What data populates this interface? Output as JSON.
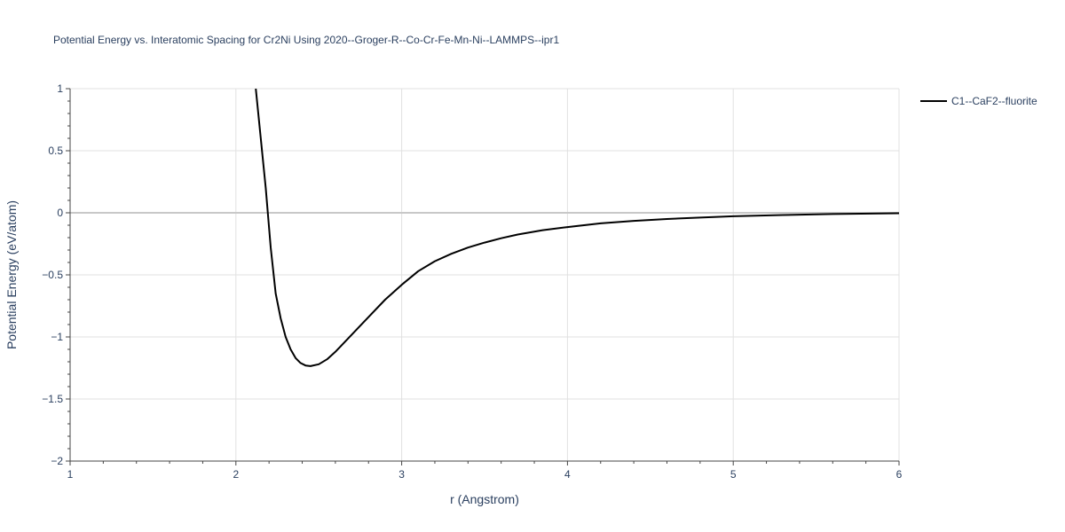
{
  "chart_data": {
    "type": "line",
    "title": "Potential Energy vs. Interatomic Spacing for Cr2Ni Using 2020--Groger-R--Co-Cr-Fe-Mn-Ni--LAMMPS--ipr1",
    "xlabel": "r (Angstrom)",
    "ylabel": "Potential Energy (eV/atom)",
    "xlim": [
      1,
      6
    ],
    "ylim": [
      -2,
      1
    ],
    "xticks": [
      1,
      2,
      3,
      4,
      5,
      6
    ],
    "xtick_labels": [
      "1",
      "2",
      "3",
      "4",
      "5",
      "6"
    ],
    "yticks": [
      -2,
      -1.5,
      -1,
      -0.5,
      0,
      0.5,
      1
    ],
    "ytick_labels": [
      "−2",
      "−1.5",
      "−1",
      "−0.5",
      "0",
      "0.5",
      "1"
    ],
    "grid": true,
    "legend_position": "top-right",
    "series": [
      {
        "name": "C1--CaF2--fluorite",
        "color": "#000000",
        "x": [
          2.12,
          2.15,
          2.18,
          2.21,
          2.24,
          2.27,
          2.3,
          2.33,
          2.36,
          2.39,
          2.42,
          2.45,
          2.5,
          2.55,
          2.6,
          2.7,
          2.8,
          2.9,
          3.0,
          3.1,
          3.2,
          3.3,
          3.4,
          3.5,
          3.6,
          3.7,
          3.85,
          4.0,
          4.2,
          4.4,
          4.6,
          4.8,
          5.0,
          5.3,
          5.6,
          6.0
        ],
        "y": [
          1.0,
          0.6,
          0.2,
          -0.28,
          -0.65,
          -0.85,
          -1.0,
          -1.1,
          -1.17,
          -1.21,
          -1.23,
          -1.235,
          -1.22,
          -1.18,
          -1.12,
          -0.98,
          -0.84,
          -0.7,
          -0.58,
          -0.47,
          -0.39,
          -0.33,
          -0.28,
          -0.24,
          -0.205,
          -0.175,
          -0.14,
          -0.115,
          -0.085,
          -0.065,
          -0.05,
          -0.038,
          -0.028,
          -0.018,
          -0.01,
          -0.004
        ]
      }
    ]
  }
}
